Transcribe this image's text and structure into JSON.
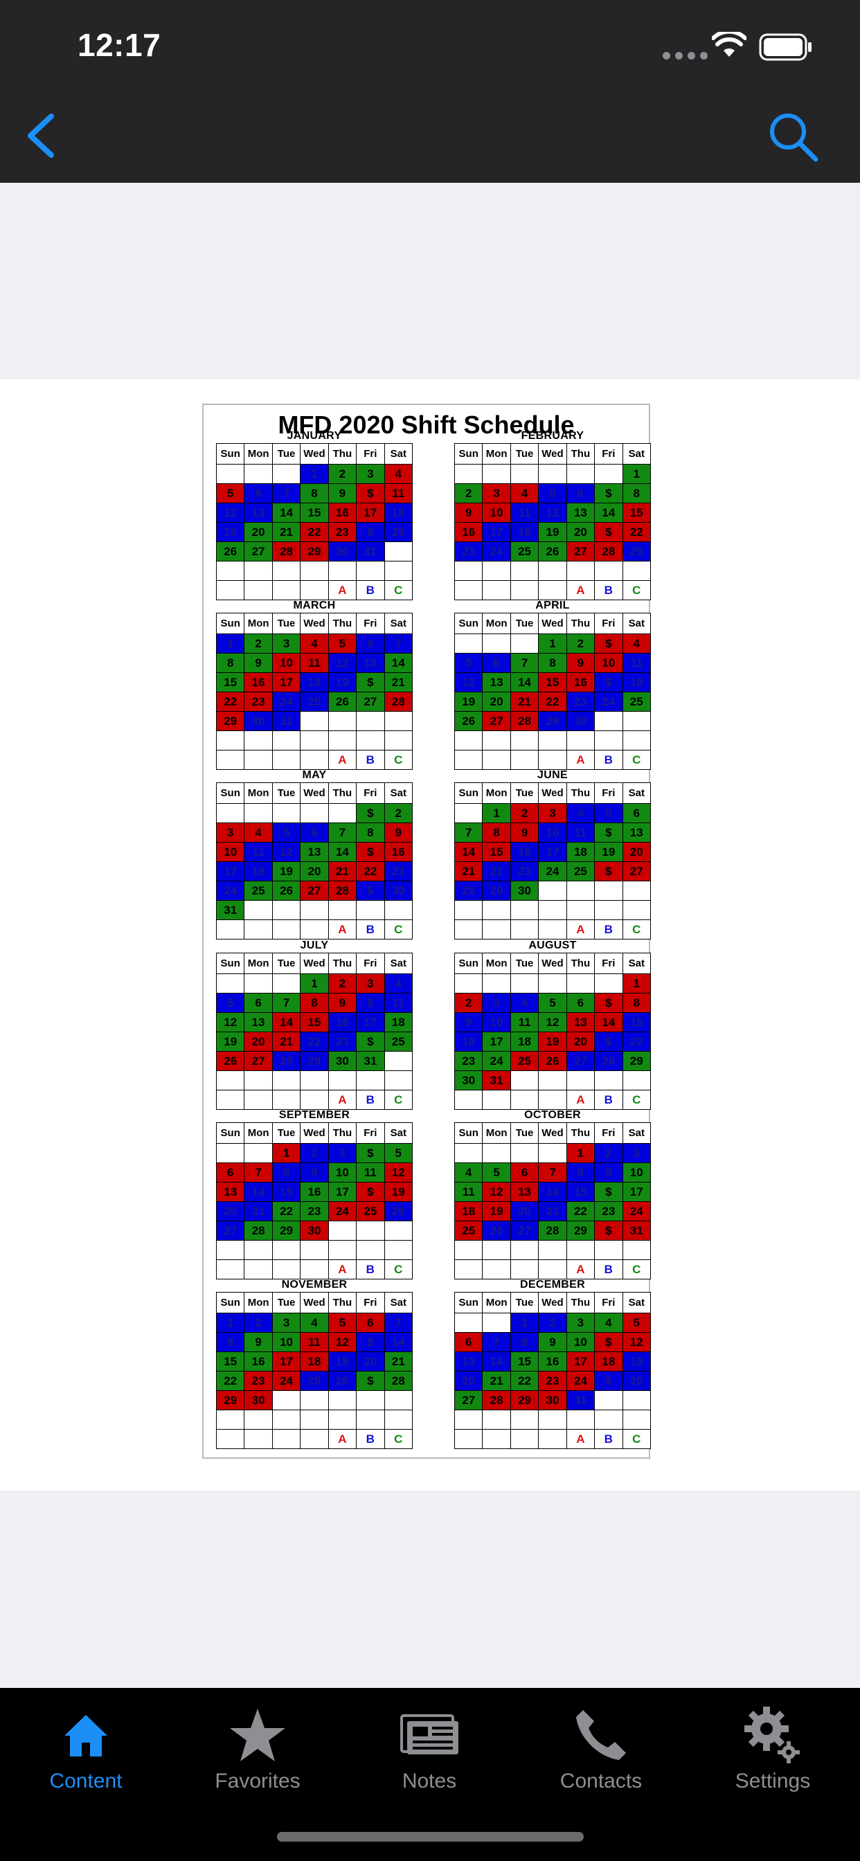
{
  "status_bar": {
    "time": "12:17"
  },
  "nav": {
    "back_icon": "chevron-left-icon",
    "search_icon": "search-icon",
    "accent": "#1c8ff6"
  },
  "document": {
    "title": "MFD 2020 Shift Schedule",
    "day_headers": [
      "Sun",
      "Mon",
      "Tue",
      "Wed",
      "Thu",
      "Fri",
      "Sat"
    ],
    "legend": [
      "A",
      "B",
      "C"
    ],
    "shift_colors": {
      "r": "#cc0000",
      "g": "#128a12",
      "b": "#0000dc"
    },
    "months": [
      {
        "name": "JANUARY",
        "rows": [
          [
            "",
            "",
            "",
            "1b",
            "2g",
            "3g",
            "4r"
          ],
          [
            "5r",
            "6b",
            "7b",
            "8g",
            "9g",
            "$r",
            "11r"
          ],
          [
            "12b",
            "13b",
            "14g",
            "15g",
            "16r",
            "17r",
            "18b"
          ],
          [
            "19b",
            "20g",
            "21g",
            "22r",
            "23r",
            "$b",
            "25b"
          ],
          [
            "26g",
            "27g",
            "28r",
            "29r",
            "30b",
            "31b",
            ""
          ]
        ]
      },
      {
        "name": "FEBRUARY",
        "rows": [
          [
            "",
            "",
            "",
            "",
            "",
            "",
            "1g"
          ],
          [
            "2g",
            "3r",
            "4r",
            "5b",
            "6b",
            "$g",
            "8g"
          ],
          [
            "9r",
            "10r",
            "11b",
            "12b",
            "13g",
            "14g",
            "15r"
          ],
          [
            "16r",
            "17b",
            "18b",
            "19g",
            "20g",
            "$r",
            "22r"
          ],
          [
            "23b",
            "24b",
            "25g",
            "26g",
            "27r",
            "28r",
            "29b"
          ]
        ]
      },
      {
        "name": "MARCH",
        "rows": [
          [
            "1b",
            "2g",
            "3g",
            "4r",
            "5r",
            "6b",
            "7b"
          ],
          [
            "8g",
            "9g",
            "10r",
            "11r",
            "12b",
            "13b",
            "14g"
          ],
          [
            "15g",
            "16r",
            "17r",
            "18b",
            "19b",
            "$g",
            "21g"
          ],
          [
            "22r",
            "23r",
            "24b",
            "25b",
            "26g",
            "27g",
            "28r"
          ],
          [
            "29r",
            "30b",
            "31b",
            "",
            "",
            "",
            ""
          ]
        ]
      },
      {
        "name": "APRIL",
        "rows": [
          [
            "",
            "",
            "",
            "1g",
            "2g",
            "$r",
            "4r"
          ],
          [
            "5b",
            "6b",
            "7g",
            "8g",
            "9r",
            "10r",
            "11b"
          ],
          [
            "12b",
            "13g",
            "14g",
            "15r",
            "16r",
            "$b",
            "18b"
          ],
          [
            "19g",
            "20g",
            "21r",
            "22r",
            "23b",
            "24b",
            "25g"
          ],
          [
            "26g",
            "27r",
            "28r",
            "29b",
            "30b",
            "",
            ""
          ]
        ]
      },
      {
        "name": "MAY",
        "rows": [
          [
            "",
            "",
            "",
            "",
            "",
            "$g",
            "2g"
          ],
          [
            "3r",
            "4r",
            "5b",
            "6b",
            "7g",
            "8g",
            "9r"
          ],
          [
            "10r",
            "11b",
            "12b",
            "13g",
            "14g",
            "$r",
            "16r"
          ],
          [
            "17b",
            "18b",
            "19g",
            "20g",
            "21r",
            "22r",
            "23b"
          ],
          [
            "24b",
            "25g",
            "26g",
            "27r",
            "28r",
            "$b",
            "30b"
          ],
          [
            "31g",
            "",
            "",
            "",
            "",
            "",
            ""
          ]
        ]
      },
      {
        "name": "JUNE",
        "rows": [
          [
            "",
            "1g",
            "2r",
            "3r",
            "4b",
            "5b",
            "6g"
          ],
          [
            "7g",
            "8r",
            "9r",
            "10b",
            "11b",
            "$g",
            "13g"
          ],
          [
            "14r",
            "15r",
            "16b",
            "17b",
            "18g",
            "19g",
            "20r"
          ],
          [
            "21r",
            "22b",
            "23b",
            "24g",
            "25g",
            "$r",
            "27r"
          ],
          [
            "28b",
            "29b",
            "30g",
            "",
            "",
            "",
            ""
          ]
        ]
      },
      {
        "name": "JULY",
        "rows": [
          [
            "",
            "",
            "",
            "1g",
            "2r",
            "3r",
            "4b"
          ],
          [
            "5b",
            "6g",
            "7g",
            "8r",
            "9r",
            "$b",
            "11b"
          ],
          [
            "12g",
            "13g",
            "14r",
            "15r",
            "16b",
            "17b",
            "18g"
          ],
          [
            "19g",
            "20r",
            "21r",
            "22b",
            "23b",
            "$g",
            "25g"
          ],
          [
            "26r",
            "27r",
            "28b",
            "29b",
            "30g",
            "31g",
            ""
          ]
        ]
      },
      {
        "name": "AUGUST",
        "rows": [
          [
            "",
            "",
            "",
            "",
            "",
            "",
            "1r"
          ],
          [
            "2r",
            "3b",
            "4b",
            "5g",
            "6g",
            "$r",
            "8r"
          ],
          [
            "9b",
            "10b",
            "11g",
            "12g",
            "13r",
            "14r",
            "15b"
          ],
          [
            "16b",
            "17g",
            "18g",
            "19r",
            "20r",
            "$b",
            "22b"
          ],
          [
            "23g",
            "24g",
            "25r",
            "26r",
            "27b",
            "28b",
            "29g"
          ],
          [
            "30g",
            "31r",
            "",
            "",
            "",
            "",
            ""
          ]
        ]
      },
      {
        "name": "SEPTEMBER",
        "rows": [
          [
            "",
            "",
            "1r",
            "2b",
            "3b",
            "$g",
            "5g"
          ],
          [
            "6r",
            "7r",
            "8b",
            "9b",
            "10g",
            "11g",
            "12r"
          ],
          [
            "13r",
            "14b",
            "15b",
            "16g",
            "17g",
            "$r",
            "19r"
          ],
          [
            "20b",
            "21b",
            "22g",
            "23g",
            "24r",
            "25r",
            "26b"
          ],
          [
            "27b",
            "28g",
            "29g",
            "30r",
            "",
            "",
            ""
          ]
        ]
      },
      {
        "name": "OCTOBER",
        "rows": [
          [
            "",
            "",
            "",
            "",
            "1r",
            "2b",
            "3b"
          ],
          [
            "4g",
            "5g",
            "6r",
            "7r",
            "8b",
            "9b",
            "10g"
          ],
          [
            "11g",
            "12r",
            "13r",
            "14b",
            "15b",
            "$g",
            "17g"
          ],
          [
            "18r",
            "19r",
            "20b",
            "21b",
            "22g",
            "23g",
            "24r"
          ],
          [
            "25r",
            "26b",
            "27b",
            "28g",
            "29g",
            "$r",
            "31r"
          ]
        ]
      },
      {
        "name": "NOVEMBER",
        "rows": [
          [
            "1b",
            "2b",
            "3g",
            "4g",
            "5r",
            "6r",
            "7b"
          ],
          [
            "8b",
            "9g",
            "10g",
            "11r",
            "12r",
            "$b",
            "14b"
          ],
          [
            "15g",
            "16g",
            "17r",
            "18r",
            "19b",
            "20b",
            "21g"
          ],
          [
            "22g",
            "23r",
            "24r",
            "25b",
            "26b",
            "$g",
            "28g"
          ],
          [
            "29r",
            "30r",
            "",
            "",
            "",
            "",
            ""
          ]
        ]
      },
      {
        "name": "DECEMBER",
        "rows": [
          [
            "",
            "",
            "1b",
            "2b",
            "3g",
            "4g",
            "5r"
          ],
          [
            "6r",
            "7b",
            "8b",
            "9g",
            "10g",
            "$r",
            "12r"
          ],
          [
            "13b",
            "14b",
            "15g",
            "16g",
            "17r",
            "18r",
            "19b"
          ],
          [
            "20b",
            "21g",
            "22g",
            "23r",
            "24r",
            "$b",
            "26b"
          ],
          [
            "27g",
            "28r",
            "29r",
            "30r",
            "31b",
            "",
            ""
          ]
        ]
      }
    ]
  },
  "tabs": [
    {
      "label": "Content",
      "icon": "home-icon",
      "active": true
    },
    {
      "label": "Favorites",
      "icon": "star-icon",
      "active": false
    },
    {
      "label": "Notes",
      "icon": "notes-icon",
      "active": false
    },
    {
      "label": "Contacts",
      "icon": "phone-icon",
      "active": false
    },
    {
      "label": "Settings",
      "icon": "gear-icon",
      "active": false
    }
  ]
}
